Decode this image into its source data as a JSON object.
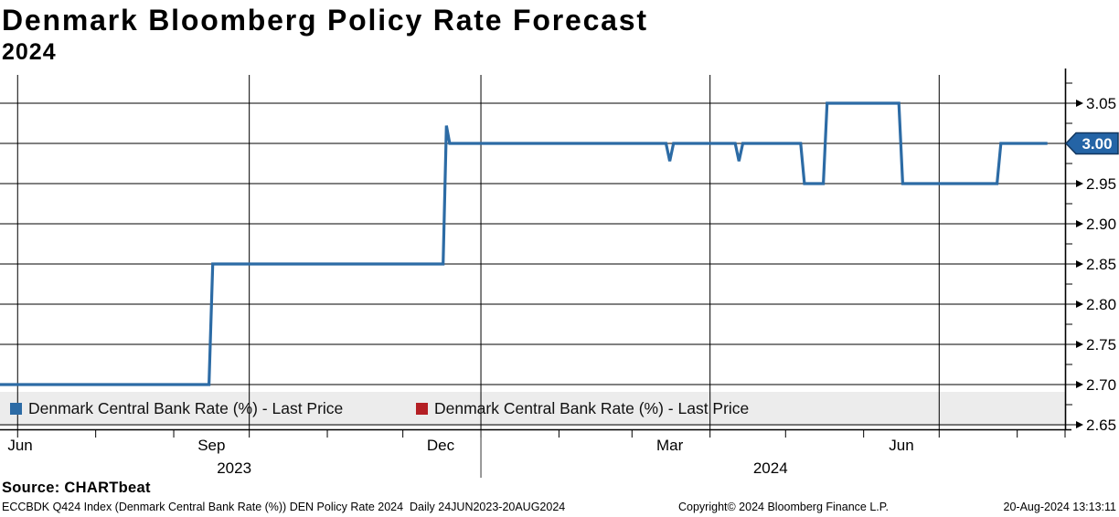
{
  "page": {
    "title": "Denmark Bloomberg Policy Rate Forecast",
    "subtitle": "2024"
  },
  "legend": {
    "items": [
      {
        "label": "Denmark Central Bank Rate (%) - Last Price",
        "color": "#2c6ba5"
      },
      {
        "label": "Denmark Central Bank Rate (%) - Last Price",
        "color": "#b41f24"
      }
    ]
  },
  "last_price_tag": {
    "value": "3.00",
    "fill": "#2464a6",
    "border": "#12365e",
    "text_color": "#ffffff"
  },
  "source": "Source: CHARTbeat",
  "footer": {
    "security_info": "ECCBDK Q424 Index (Denmark Central Bank Rate (%)) DEN Policy Rate 2024  Daily 24JUN2023-20AUG2024",
    "copyright": "Copyright© 2024 Bloomberg Finance L.P.",
    "timestamp": "20-Aug-2024 13:13:11"
  },
  "chart_data": {
    "type": "line",
    "title": "Denmark Bloomberg Policy Rate Forecast 2024",
    "xlabel": "",
    "ylabel": "",
    "unit": "%",
    "x_domain": {
      "start": "24JUN2023",
      "end": "20AUG2024",
      "total_days": 423
    },
    "ylim": [
      2.633,
      3.085
    ],
    "yticks_major": [
      2.65,
      2.7,
      2.75,
      2.8,
      2.85,
      2.9,
      2.95,
      3.0,
      3.05
    ],
    "yticks_minor": [
      2.675,
      2.725,
      2.775,
      2.825,
      2.875,
      2.925,
      2.975,
      3.025,
      3.075
    ],
    "month_ticks_days": [
      7,
      38,
      69,
      99,
      130,
      160,
      191,
      222,
      251,
      282,
      312,
      343,
      373,
      404,
      423
    ],
    "month_labels": [
      {
        "label": "Jun",
        "day": 8
      },
      {
        "label": "Sep",
        "day": 84
      },
      {
        "label": "Dec",
        "day": 175
      },
      {
        "label": "Mar",
        "day": 266
      },
      {
        "label": "Jun",
        "day": 358
      }
    ],
    "year_labels": [
      {
        "label": "2023",
        "day": 93
      },
      {
        "label": "2024",
        "day": 306
      }
    ],
    "quarter_gridlines_days": [
      7,
      99,
      191,
      282,
      373
    ],
    "year_divider_day": 191,
    "grid_color": "#000000",
    "legend_strip_color": "#ececec",
    "last_price": 3.0,
    "series": [
      {
        "name": "Denmark Central Bank Rate (%) - Last Price",
        "color": "#2c6ba5",
        "points": [
          [
            0,
            2.7
          ],
          [
            83,
            2.7
          ],
          [
            84.5,
            2.85
          ],
          [
            176,
            2.85
          ],
          [
            177.3,
            3.022
          ],
          [
            178.6,
            3.0
          ],
          [
            264.5,
            3.0
          ],
          [
            266,
            2.978
          ],
          [
            267.5,
            3.0
          ],
          [
            292,
            3.0
          ],
          [
            293.5,
            2.978
          ],
          [
            295,
            3.0
          ],
          [
            318,
            3.0
          ],
          [
            319.5,
            2.95
          ],
          [
            327,
            2.95
          ],
          [
            328.5,
            3.05
          ],
          [
            357,
            3.05
          ],
          [
            358.5,
            2.95
          ],
          [
            396,
            2.95
          ],
          [
            397.5,
            3.0
          ],
          [
            416,
            3.0
          ]
        ]
      }
    ]
  }
}
